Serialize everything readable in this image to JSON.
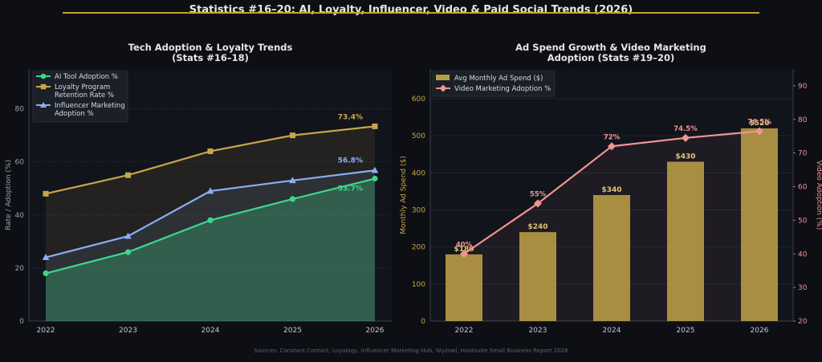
{
  "page": {
    "title": "Statistics #16–20: AI, Loyalty, Influencer, Video & Paid Social Trends (2026)",
    "source": "Sources: Constant Contact, Loyalogy, Influencer Marketing Hub, Wyzowl, Hootsuite Small Business Report 2026"
  },
  "colors": {
    "background": "#0d0f14",
    "panel": "#11141b",
    "gold": "#c9a227",
    "green": "#3dd68c",
    "amber": "#c8a64a",
    "blue": "#8aaef5",
    "bar": "#b89b45",
    "pink": "#f29494"
  },
  "chart_data": [
    {
      "type": "line",
      "title_line1": "Tech Adoption & Loyalty Trends",
      "title_line2": "(Stats #16–18)",
      "xlabel": "",
      "ylabel": "Rate / Adoption (%)",
      "categories": [
        "2022",
        "2023",
        "2024",
        "2025",
        "2026"
      ],
      "ylim": [
        0,
        95
      ],
      "yticks": [
        "0",
        "20",
        "40",
        "60",
        "80"
      ],
      "grid": true,
      "legend": "top-left",
      "series": [
        {
          "name": "AI Tool Adoption %",
          "values": [
            18,
            26,
            38,
            46,
            53.7
          ],
          "end_label": "53.7%",
          "color": "#3dd68c",
          "marker": "circle"
        },
        {
          "name_line1": "Loyalty Program",
          "name_line2": "Retention Rate %",
          "values": [
            48,
            55,
            64,
            70,
            73.4
          ],
          "end_label": "73.4%",
          "color": "#c8a64a",
          "marker": "square"
        },
        {
          "name_line1": "Influencer Marketing",
          "name_line2": "Adoption %",
          "values": [
            24,
            32,
            49,
            53,
            56.8
          ],
          "end_label": "56.8%",
          "color": "#8aaef5",
          "marker": "triangle"
        }
      ]
    },
    {
      "type": "bar+line",
      "title_line1": "Ad Spend Growth & Video Marketing",
      "title_line2": "Adoption (Stats #19–20)",
      "xlabel": "",
      "categories": [
        "2022",
        "2023",
        "2024",
        "2025",
        "2026"
      ],
      "bars": {
        "name": "Avg Monthly Ad Spend ($)",
        "values": [
          180,
          240,
          340,
          430,
          520
        ],
        "labels": [
          "$180",
          "$240",
          "$340",
          "$430",
          "$520"
        ],
        "axis_label": "Monthly Ad Spend ($)",
        "ylim": [
          0,
          680
        ],
        "yticks": [
          "0",
          "100",
          "200",
          "300",
          "400",
          "500",
          "600"
        ]
      },
      "line": {
        "name": "Video Marketing Adoption %",
        "values": [
          40,
          55,
          72,
          74.5,
          76.5
        ],
        "labels": [
          "40%",
          "55%",
          "72%",
          "74.5%",
          "76.5%"
        ],
        "axis_label": "Video Adoption (%)",
        "ylim": [
          20,
          95
        ],
        "yticks": [
          "20",
          "30",
          "40",
          "50",
          "60",
          "70",
          "80",
          "90"
        ]
      },
      "grid": true,
      "legend": "top-left"
    }
  ]
}
